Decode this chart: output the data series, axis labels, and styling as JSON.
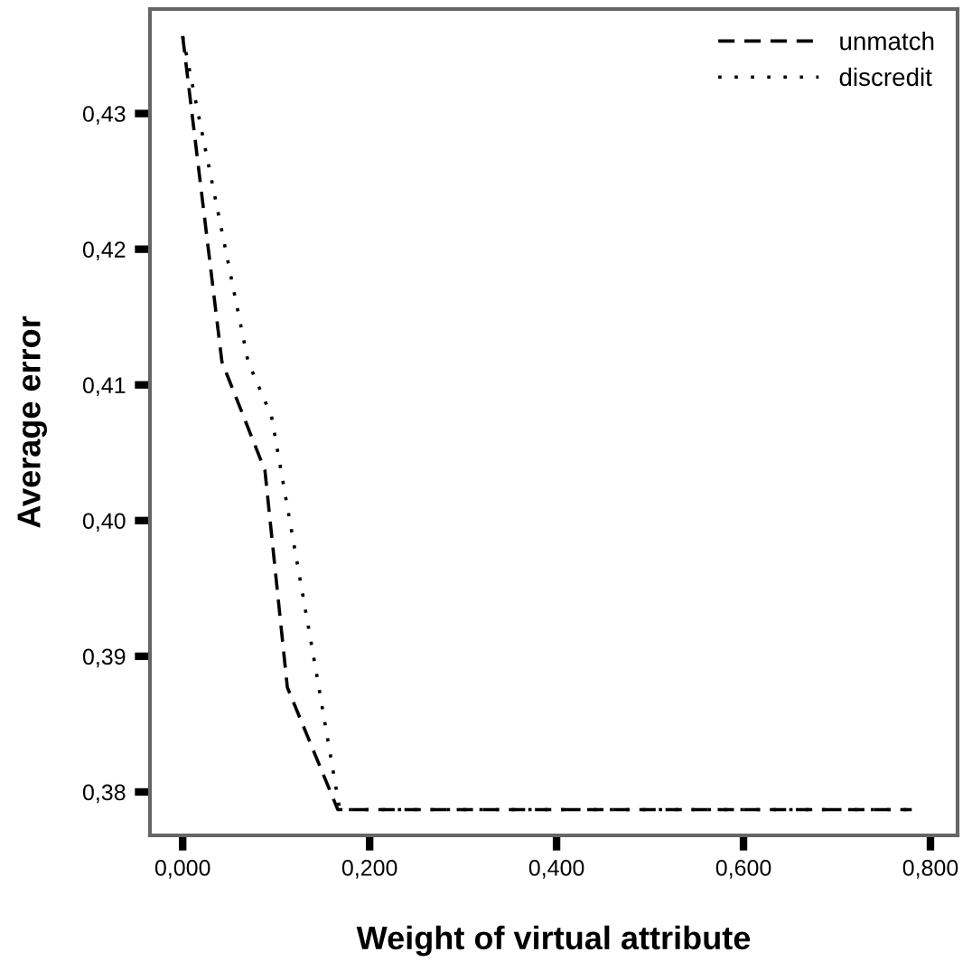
{
  "chart_data": {
    "type": "line",
    "xlabel": "Weight of virtual attribute",
    "ylabel": "Average error",
    "series": [
      {
        "name": "unmatch",
        "color": "#000000",
        "line_style": "dashed",
        "x": [
          0.0,
          0.042,
          0.088,
          0.112,
          0.166,
          0.3,
          0.5,
          0.78
        ],
        "values": [
          0.4357,
          0.4117,
          0.4037,
          0.3877,
          0.3787,
          0.3787,
          0.3787,
          0.3787
        ]
      },
      {
        "name": "discredit",
        "color": "#000000",
        "line_style": "dotted",
        "x": [
          0.0,
          0.07,
          0.095,
          0.14,
          0.168,
          0.3,
          0.5,
          0.78
        ],
        "values": [
          0.4357,
          0.4117,
          0.4077,
          0.39,
          0.3787,
          0.3787,
          0.3787,
          0.3787
        ]
      }
    ],
    "xlim": [
      -0.035,
      0.829
    ],
    "ylim": [
      0.3768,
      0.4377
    ],
    "xticks": [
      {
        "value": 0,
        "label": "0,000"
      },
      {
        "value": 0.2,
        "label": "0,200"
      },
      {
        "value": 0.4,
        "label": "0,400"
      },
      {
        "value": 0.6,
        "label": "0,600"
      },
      {
        "value": 0.8,
        "label": "0,800"
      }
    ],
    "yticks": [
      {
        "value": 0.38,
        "label": "0,38"
      },
      {
        "value": 0.39,
        "label": "0,39"
      },
      {
        "value": 0.4,
        "label": "0,40"
      },
      {
        "value": 0.41,
        "label": "0,41"
      },
      {
        "value": 0.42,
        "label": "0,42"
      },
      {
        "value": 0.43,
        "label": "0,43"
      }
    ],
    "legend": "top right",
    "grid": false,
    "marker": "none"
  }
}
